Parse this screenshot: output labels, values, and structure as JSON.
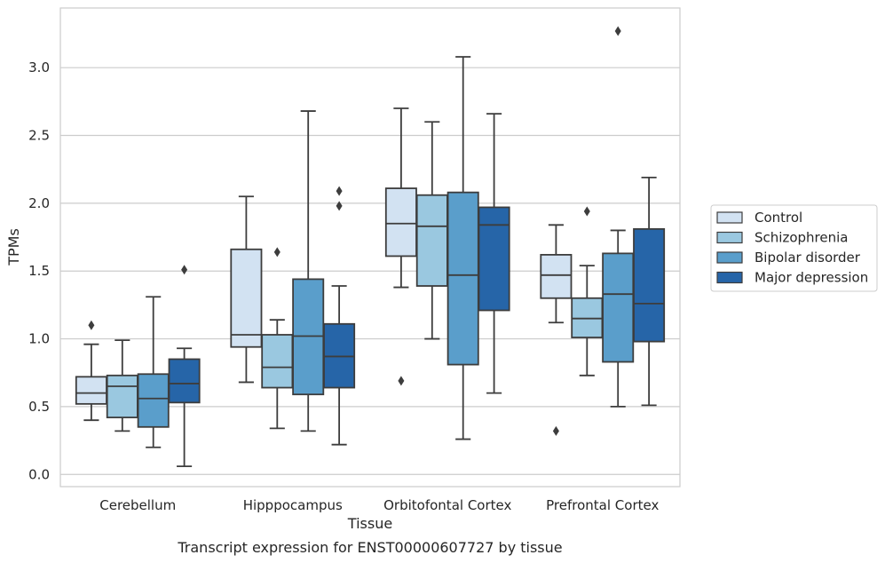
{
  "chart_data": {
    "type": "box",
    "xlabel": "Tissue",
    "ylabel": "TPMs",
    "caption": "Transcript expression for ENST00000607727 by tissue",
    "ylim": [
      -0.09,
      3.44
    ],
    "yticks": [
      0.0,
      0.5,
      1.0,
      1.5,
      2.0,
      2.5,
      3.0
    ],
    "ytick_labels": [
      "0.0",
      "0.5",
      "1.0",
      "1.5",
      "2.0",
      "2.5",
      "3.0"
    ],
    "grid": "horizontal",
    "legend_position": "right",
    "categories": [
      "Cerebellum",
      "Hipppocampus",
      "Orbitofontal Cortex",
      "Prefrontal Cortex"
    ],
    "series": [
      {
        "name": "Control",
        "color": "#d2e2f2",
        "boxes": [
          {
            "whislo": 0.4,
            "q1": 0.52,
            "med": 0.6,
            "q3": 0.72,
            "whishi": 0.96,
            "fliers": [
              1.1
            ]
          },
          {
            "whislo": 0.68,
            "q1": 0.94,
            "med": 1.03,
            "q3": 1.66,
            "whishi": 2.05,
            "fliers": []
          },
          {
            "whislo": 1.38,
            "q1": 1.61,
            "med": 1.85,
            "q3": 2.11,
            "whishi": 2.7,
            "fliers": [
              0.69
            ]
          },
          {
            "whislo": 1.12,
            "q1": 1.3,
            "med": 1.47,
            "q3": 1.62,
            "whishi": 1.84,
            "fliers": [
              0.32
            ]
          }
        ]
      },
      {
        "name": "Schizophrenia",
        "color": "#9ac8e0",
        "boxes": [
          {
            "whislo": 0.32,
            "q1": 0.42,
            "med": 0.65,
            "q3": 0.73,
            "whishi": 0.99,
            "fliers": []
          },
          {
            "whislo": 0.34,
            "q1": 0.64,
            "med": 0.79,
            "q3": 1.03,
            "whishi": 1.14,
            "fliers": [
              1.64
            ]
          },
          {
            "whislo": 1.0,
            "q1": 1.39,
            "med": 1.83,
            "q3": 2.06,
            "whishi": 2.6,
            "fliers": []
          },
          {
            "whislo": 0.73,
            "q1": 1.01,
            "med": 1.15,
            "q3": 1.3,
            "whishi": 1.54,
            "fliers": [
              1.94
            ]
          }
        ]
      },
      {
        "name": "Bipolar disorder",
        "color": "#5a9ecb",
        "boxes": [
          {
            "whislo": 0.2,
            "q1": 0.35,
            "med": 0.56,
            "q3": 0.74,
            "whishi": 1.31,
            "fliers": []
          },
          {
            "whislo": 0.32,
            "q1": 0.59,
            "med": 1.02,
            "q3": 1.44,
            "whishi": 2.68,
            "fliers": []
          },
          {
            "whislo": 0.26,
            "q1": 0.81,
            "med": 1.47,
            "q3": 2.08,
            "whishi": 3.08,
            "fliers": []
          },
          {
            "whislo": 0.5,
            "q1": 0.83,
            "med": 1.33,
            "q3": 1.63,
            "whishi": 1.8,
            "fliers": [
              3.27
            ]
          }
        ]
      },
      {
        "name": "Major depression",
        "color": "#2665a8",
        "boxes": [
          {
            "whislo": 0.06,
            "q1": 0.53,
            "med": 0.67,
            "q3": 0.85,
            "whishi": 0.93,
            "fliers": [
              1.51
            ]
          },
          {
            "whislo": 0.22,
            "q1": 0.64,
            "med": 0.87,
            "q3": 1.11,
            "whishi": 1.39,
            "fliers": [
              1.98,
              2.09
            ]
          },
          {
            "whislo": 0.6,
            "q1": 1.21,
            "med": 1.84,
            "q3": 1.97,
            "whishi": 2.66,
            "fliers": []
          },
          {
            "whislo": 0.51,
            "q1": 0.98,
            "med": 1.26,
            "q3": 1.81,
            "whishi": 2.19,
            "fliers": []
          }
        ]
      }
    ]
  }
}
